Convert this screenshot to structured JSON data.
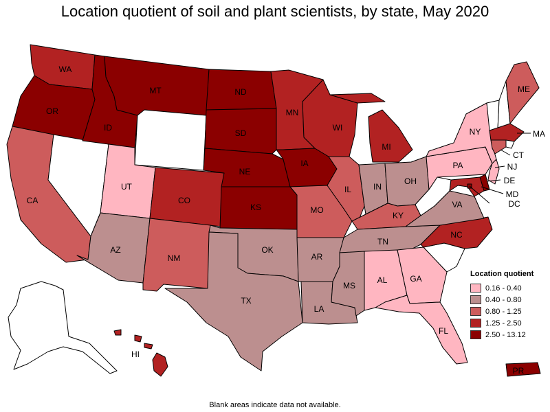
{
  "title": "Location quotient of soil and plant scientists, by state, May 2020",
  "footnote": "Blank areas indicate data not available.",
  "legend": {
    "title": "Location quotient",
    "items": [
      {
        "label": "0.16 - 0.40",
        "color": "#ffb6c1"
      },
      {
        "label": "0.40 - 0.80",
        "color": "#bc8f8f"
      },
      {
        "label": "0.80 - 1.25",
        "color": "#cd5c5c"
      },
      {
        "label": "1.25 - 2.50",
        "color": "#b22222"
      },
      {
        "label": "2.50 - 13.12",
        "color": "#8b0000"
      }
    ]
  },
  "no_data_color": "#ffffff",
  "states": [
    {
      "abbr": "WA",
      "class": "1.25 - 2.50"
    },
    {
      "abbr": "OR",
      "class": "2.50 - 13.12"
    },
    {
      "abbr": "CA",
      "class": "0.80 - 1.25"
    },
    {
      "abbr": "NV",
      "class": "none"
    },
    {
      "abbr": "ID",
      "class": "2.50 - 13.12"
    },
    {
      "abbr": "MT",
      "class": "2.50 - 13.12"
    },
    {
      "abbr": "WY",
      "class": "none"
    },
    {
      "abbr": "UT",
      "class": "0.16 - 0.40"
    },
    {
      "abbr": "AZ",
      "class": "0.40 - 0.80"
    },
    {
      "abbr": "CO",
      "class": "1.25 - 2.50"
    },
    {
      "abbr": "NM",
      "class": "0.80 - 1.25"
    },
    {
      "abbr": "ND",
      "class": "2.50 - 13.12"
    },
    {
      "abbr": "SD",
      "class": "2.50 - 13.12"
    },
    {
      "abbr": "NE",
      "class": "2.50 - 13.12"
    },
    {
      "abbr": "KS",
      "class": "2.50 - 13.12"
    },
    {
      "abbr": "OK",
      "class": "0.40 - 0.80"
    },
    {
      "abbr": "TX",
      "class": "0.40 - 0.80"
    },
    {
      "abbr": "MN",
      "class": "1.25 - 2.50"
    },
    {
      "abbr": "IA",
      "class": "2.50 - 13.12"
    },
    {
      "abbr": "MO",
      "class": "0.80 - 1.25"
    },
    {
      "abbr": "AR",
      "class": "0.40 - 0.80"
    },
    {
      "abbr": "LA",
      "class": "0.40 - 0.80"
    },
    {
      "abbr": "WI",
      "class": "1.25 - 2.50"
    },
    {
      "abbr": "IL",
      "class": "0.80 - 1.25"
    },
    {
      "abbr": "MI",
      "class": "1.25 - 2.50"
    },
    {
      "abbr": "IN",
      "class": "0.40 - 0.80"
    },
    {
      "abbr": "OH",
      "class": "0.40 - 0.80"
    },
    {
      "abbr": "KY",
      "class": "0.80 - 1.25"
    },
    {
      "abbr": "TN",
      "class": "0.40 - 0.80"
    },
    {
      "abbr": "MS",
      "class": "0.40 - 0.80"
    },
    {
      "abbr": "AL",
      "class": "0.16 - 0.40"
    },
    {
      "abbr": "GA",
      "class": "0.16 - 0.40"
    },
    {
      "abbr": "FL",
      "class": "0.16 - 0.40"
    },
    {
      "abbr": "SC",
      "class": "none"
    },
    {
      "abbr": "NC",
      "class": "1.25 - 2.50"
    },
    {
      "abbr": "VA",
      "class": "0.40 - 0.80"
    },
    {
      "abbr": "WV",
      "class": "none"
    },
    {
      "abbr": "PA",
      "class": "0.16 - 0.40"
    },
    {
      "abbr": "NY",
      "class": "0.16 - 0.40"
    },
    {
      "abbr": "VT",
      "class": "none"
    },
    {
      "abbr": "NH",
      "class": "none"
    },
    {
      "abbr": "ME",
      "class": "0.80 - 1.25"
    },
    {
      "abbr": "MA",
      "class": "1.25 - 2.50"
    },
    {
      "abbr": "RI",
      "class": "none"
    },
    {
      "abbr": "CT",
      "class": "0.80 - 1.25"
    },
    {
      "abbr": "NJ",
      "class": "0.16 - 0.40"
    },
    {
      "abbr": "DE",
      "class": "2.50 - 13.12"
    },
    {
      "abbr": "MD",
      "class": "1.25 - 2.50"
    },
    {
      "abbr": "DC",
      "class": "2.50 - 13.12"
    },
    {
      "abbr": "AK",
      "class": "none"
    },
    {
      "abbr": "HI",
      "class": "1.25 - 2.50"
    },
    {
      "abbr": "PR",
      "class": "2.50 - 13.12"
    }
  ]
}
